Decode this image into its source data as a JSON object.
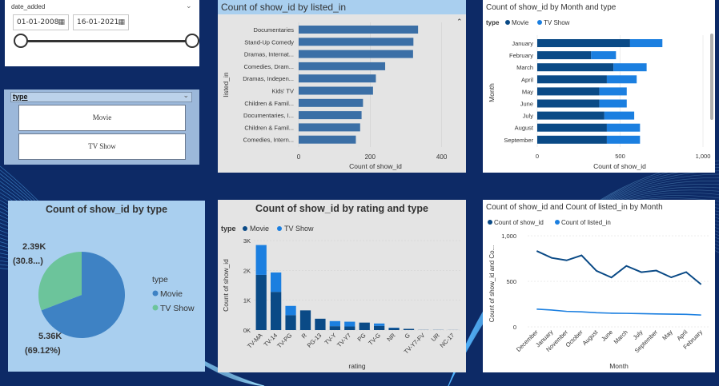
{
  "colors": {
    "page_bg": "#0d2a66",
    "movie": "#0a4a86",
    "tv_show": "#1b7fe0",
    "bar_single": "#3b6fa6",
    "pie_movie": "#3e82c4",
    "pie_tv": "#6cc49b",
    "card_light_blue": "#a9cfef",
    "card_gray": "#e4e4e4"
  },
  "date_slicer": {
    "label": "date_added",
    "start": "01-01-2008",
    "end": "16-01-2021",
    "calendar_icon": "calendar-icon",
    "range": [
      0,
      1
    ]
  },
  "type_slicer": {
    "title": "type",
    "options": [
      "Movie",
      "TV Show"
    ]
  },
  "listed_in_chart": {
    "chart_data": {
      "type": "bar",
      "orientation": "horizontal",
      "title": "Count of show_id by listed_in",
      "xlabel": "Count of show_id",
      "ylabel": "listed_in",
      "xlim": [
        0,
        430
      ],
      "xticks": [
        "0",
        "200",
        "400"
      ],
      "categories": [
        "Documentaries",
        "Stand-Up Comedy",
        "Dramas, Internat...",
        "Comedies, Dram...",
        "Dramas, Indepen...",
        "Kids' TV",
        "Children & Famil...",
        "Documentaries, I...",
        "Children & Famil...",
        "Comedies, Intern..."
      ],
      "values": [
        334,
        321,
        320,
        242,
        216,
        208,
        180,
        176,
        172,
        160
      ]
    }
  },
  "month_type_chart": {
    "chart_data": {
      "type": "bar",
      "orientation": "horizontal",
      "stacked": true,
      "title": "Count of show_id by Month and type",
      "legend_title": "type",
      "xlabel": "Count of show_id",
      "ylabel": "Month",
      "xlim": [
        0,
        1000
      ],
      "xticks": [
        "0",
        "500",
        "1,000"
      ],
      "categories": [
        "January",
        "February",
        "March",
        "April",
        "May",
        "June",
        "July",
        "August",
        "September"
      ],
      "series": [
        {
          "name": "Movie",
          "values": [
            560,
            325,
            460,
            420,
            375,
            375,
            405,
            420,
            420
          ]
        },
        {
          "name": "TV Show",
          "values": [
            195,
            150,
            200,
            180,
            165,
            165,
            180,
            200,
            200
          ]
        }
      ]
    }
  },
  "pie_chart": {
    "chart_data": {
      "type": "pie",
      "title": "Count of show_id by type",
      "legend_title": "type",
      "categories": [
        "Movie",
        "TV Show"
      ],
      "values": [
        5360,
        2390
      ],
      "labels": [
        {
          "value": "5.36K",
          "pct": "(69.12%)"
        },
        {
          "value": "2.39K",
          "pct": "(30.8...)"
        }
      ]
    }
  },
  "rating_chart": {
    "chart_data": {
      "type": "bar",
      "stacked": true,
      "title": "Count of show_id by rating and type",
      "legend_title": "type",
      "xlabel": "rating",
      "ylabel": "Count of show_id",
      "ylim": [
        0,
        3000
      ],
      "yticks": [
        "0K",
        "1K",
        "2K",
        "3K"
      ],
      "categories": [
        "TV-MA",
        "TV-14",
        "TV-PG",
        "R",
        "PG-13",
        "TV-Y",
        "TV-Y7",
        "PG",
        "TV-G",
        "NR",
        "G",
        "TV-Y7-FV",
        "UR",
        "NC-17"
      ],
      "series": [
        {
          "name": "Movie",
          "values": [
            1850,
            1280,
            500,
            660,
            380,
            130,
            120,
            250,
            140,
            70,
            40,
            5,
            5,
            3
          ]
        },
        {
          "name": "TV Show",
          "values": [
            1000,
            650,
            310,
            0,
            0,
            170,
            160,
            0,
            80,
            10,
            0,
            0,
            0,
            0
          ]
        }
      ]
    }
  },
  "line_chart": {
    "chart_data": {
      "type": "line",
      "title": "Count of show_id and Count of listed_in by Month",
      "xlabel": "Month",
      "ylabel": "Count of show_id and Co...",
      "ylim": [
        0,
        1000
      ],
      "yticks": [
        "0",
        "500",
        "1,000"
      ],
      "categories": [
        "December",
        "January",
        "November",
        "October",
        "August",
        "June",
        "March",
        "July",
        "September",
        "May",
        "April",
        "February"
      ],
      "series": [
        {
          "name": "Count of show_id",
          "values": [
            833,
            757,
            730,
            785,
            615,
            542,
            669,
            600,
            618,
            543,
            601,
            466
          ]
        },
        {
          "name": "Count of listed_in",
          "values": [
            195,
            185,
            170,
            165,
            155,
            150,
            148,
            145,
            142,
            140,
            138,
            130
          ]
        }
      ]
    }
  }
}
